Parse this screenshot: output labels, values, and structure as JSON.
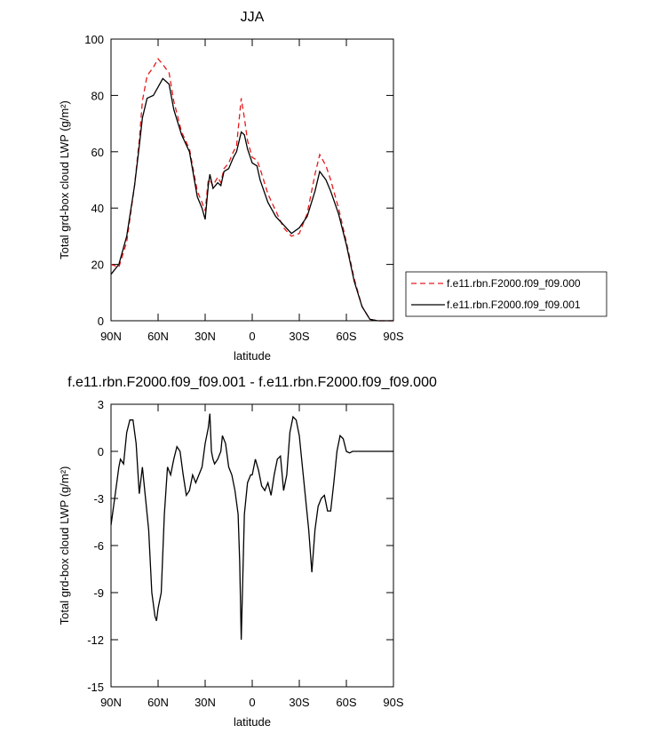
{
  "chart_data": [
    {
      "type": "line",
      "title": "JJA",
      "x_label": "latitude",
      "y_label": "Total grd-box cloud LWP (g/m²)",
      "x": [
        90,
        85,
        80,
        75,
        72,
        70,
        67,
        63,
        60,
        57,
        53,
        50,
        45,
        40,
        35,
        32,
        30,
        28,
        27,
        25,
        22,
        20,
        18,
        15,
        12,
        10,
        7,
        5,
        3,
        0,
        -3,
        -5,
        -10,
        -15,
        -20,
        -25,
        -30,
        -35,
        -40,
        -43,
        -47,
        -50,
        -55,
        -60,
        -65,
        -70,
        -75,
        -80,
        -90
      ],
      "series": [
        {
          "name": "f.e11.rbn.F2000.f09_f09.000",
          "color": "#e41a1c",
          "line_style": "dashed",
          "values": [
            20,
            19,
            28,
            48,
            64,
            78,
            87,
            90,
            93,
            91,
            88,
            78,
            67,
            61,
            46,
            42,
            39,
            50,
            50,
            48,
            51,
            49,
            54,
            56,
            60,
            62,
            79,
            72,
            64,
            58,
            57,
            54,
            45,
            39,
            33,
            30,
            31,
            38,
            52,
            59,
            55,
            50,
            40,
            28,
            15,
            5,
            0.5,
            0,
            0
          ]
        },
        {
          "name": "f.e11.rbn.F2000.f09_f09.001",
          "color": "#000000",
          "line_style": "solid",
          "values": [
            16.5,
            20,
            30,
            48,
            62,
            72,
            79,
            80,
            83,
            86,
            84,
            75,
            66,
            60,
            44,
            40,
            36,
            48,
            52,
            47,
            49,
            48,
            53,
            54,
            58,
            60,
            67,
            66,
            61,
            56,
            55,
            50,
            42,
            37,
            34,
            31,
            33,
            37,
            46,
            53,
            50,
            46,
            38,
            27,
            14,
            5,
            0.5,
            0,
            0
          ]
        }
      ],
      "xlim": [
        90,
        -90
      ],
      "xticks": [
        {
          "value": 90,
          "label": "90N"
        },
        {
          "value": 60,
          "label": "60N"
        },
        {
          "value": 30,
          "label": "30N"
        },
        0,
        {
          "value": -30,
          "label": "30S"
        },
        {
          "value": -60,
          "label": "60S"
        },
        {
          "value": -90,
          "label": "90S"
        }
      ],
      "ylim": [
        0,
        100
      ],
      "yticks": [
        0,
        20,
        40,
        60,
        80,
        100
      ],
      "legend": "right"
    },
    {
      "type": "line",
      "title": "f.e11.rbn.F2000.f09_f09.001 - f.e11.rbn.F2000.f09_f09.000",
      "x_label": "latitude",
      "y_label": "Total grd-box cloud LWP (g/m²)",
      "x": [
        90,
        87,
        85,
        84,
        82,
        80,
        78,
        76,
        74,
        72,
        70,
        68,
        66,
        64,
        62,
        61,
        60,
        58,
        56,
        54,
        52,
        50,
        48,
        46,
        44,
        42,
        40,
        38,
        36,
        34,
        32,
        30,
        28,
        27,
        26,
        25,
        24,
        22,
        20,
        19,
        17,
        15,
        13,
        11,
        9,
        8,
        7,
        6,
        5,
        3,
        1,
        0,
        -2,
        -4,
        -6,
        -8,
        -10,
        -12,
        -14,
        -16,
        -18,
        -20,
        -22,
        -24,
        -26,
        -28,
        -30,
        -32,
        -34,
        -36,
        -38,
        -40,
        -42,
        -44,
        -46,
        -48,
        -50,
        -52,
        -54,
        -56,
        -58,
        -60,
        -62,
        -64,
        -66,
        -90
      ],
      "values": [
        -4.7,
        -2.5,
        -1,
        -0.5,
        -0.8,
        1.2,
        2,
        2,
        0.5,
        -2.7,
        -1,
        -3,
        -5,
        -9,
        -10.5,
        -10.8,
        -10,
        -9,
        -4,
        -1,
        -1.5,
        -0.5,
        0.3,
        0,
        -1.5,
        -2.8,
        -2.5,
        -1.5,
        -2,
        -1.5,
        -1,
        0.5,
        1.5,
        2.4,
        0,
        -0.5,
        -0.8,
        -0.5,
        0,
        1,
        0.5,
        -1,
        -1.5,
        -2.5,
        -4,
        -7,
        -12,
        -8,
        -4,
        -2,
        -1.5,
        -1.5,
        -0.5,
        -1.2,
        -2.2,
        -2.5,
        -2,
        -2.8,
        -1.5,
        -0.5,
        -0.3,
        -2.5,
        -1.5,
        1.2,
        2.2,
        2,
        1,
        -1,
        -3,
        -5,
        -7.7,
        -5,
        -3.5,
        -3,
        -2.8,
        -3.8,
        -3.8,
        -2,
        0,
        1,
        0.8,
        0,
        -0.1,
        0,
        0,
        0
      ],
      "color": "#000000",
      "xlim": [
        90,
        -90
      ],
      "xticks": [
        {
          "value": 90,
          "label": "90N"
        },
        {
          "value": 60,
          "label": "60N"
        },
        {
          "value": 30,
          "label": "30N"
        },
        0,
        {
          "value": -30,
          "label": "30S"
        },
        {
          "value": -60,
          "label": "60S"
        },
        {
          "value": -90,
          "label": "90S"
        }
      ],
      "ylim": [
        -15,
        3
      ],
      "yticks": [
        -15,
        -12,
        -9,
        -6,
        -3,
        0,
        3
      ]
    }
  ]
}
